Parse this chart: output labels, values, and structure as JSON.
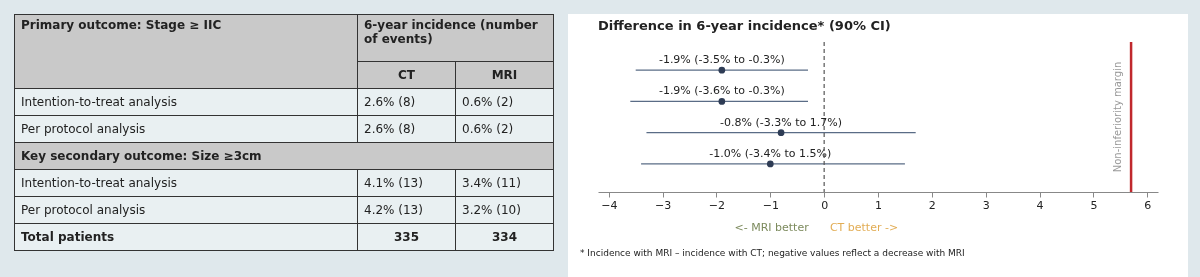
{
  "chart_data": [
    {
      "type": "other",
      "ylabel": "Primary outcome: Stage ≥ IIC",
      "xlabel": "6-year incidence (number of events)",
      "categories": [
        "CT",
        "MRI"
      ],
      "y_categories": [
        "Intention-to-treat analysis",
        "Per protocol analysis",
        "Key secondary outcome: Size ≥3cm",
        "Intention-to-treat analysis",
        "Per protocol analysis",
        "Total patients"
      ],
      "cell_labels": [
        [
          "2.6% (8)",
          "0.6% (2)"
        ],
        [
          "2.6% (8)",
          "0.6% (2)"
        ],
        [
          null,
          null
        ],
        [
          "4.1% (13)",
          "3.4% (11)"
        ],
        [
          "4.2% (13)",
          "3.2% (10)"
        ],
        [
          "335",
          "334"
        ]
      ]
    },
    {
      "type": "scatter",
      "orientation": "horizontal",
      "title": "Difference in 6-year incidence* (90% CI)",
      "categories": [
        null,
        null,
        null,
        null
      ],
      "values": [
        -1.9,
        -1.9,
        -0.8,
        -1.0
      ],
      "errors": [
        [
          -3.5,
          -0.3
        ],
        [
          -3.6,
          -0.3
        ],
        [
          -3.3,
          1.7
        ],
        [
          -3.4,
          1.5
        ]
      ],
      "value_labels": [
        "-1.9% (-3.5% to -0.3%)",
        "-1.9% (-3.6% to -0.3%)",
        "-0.8% (-3.3% to 1.7%)",
        "-1.0% (-3.4% to 1.5%)"
      ],
      "color": "#2e3c55",
      "marker": "circle",
      "xlim": [
        -4.2,
        6.2
      ],
      "xticks": [
        -4,
        -3,
        -2,
        -1,
        0,
        1,
        2,
        3,
        4,
        5,
        6
      ],
      "tick_labels": "x",
      "ref_lines": [
        {
          "axis": "x",
          "value": 0,
          "color": "#555555",
          "line_style": "dashed"
        },
        {
          "axis": "x",
          "value": 5.7,
          "label": "Non-inferiority margin",
          "color": "#c0282d",
          "line_style": "solid"
        }
      ],
      "annotations": [
        "<- MRI better",
        "CT better ->",
        "* Incidence with MRI – incidence with CT; negative values reflect a decrease with MRI"
      ]
    }
  ]
}
